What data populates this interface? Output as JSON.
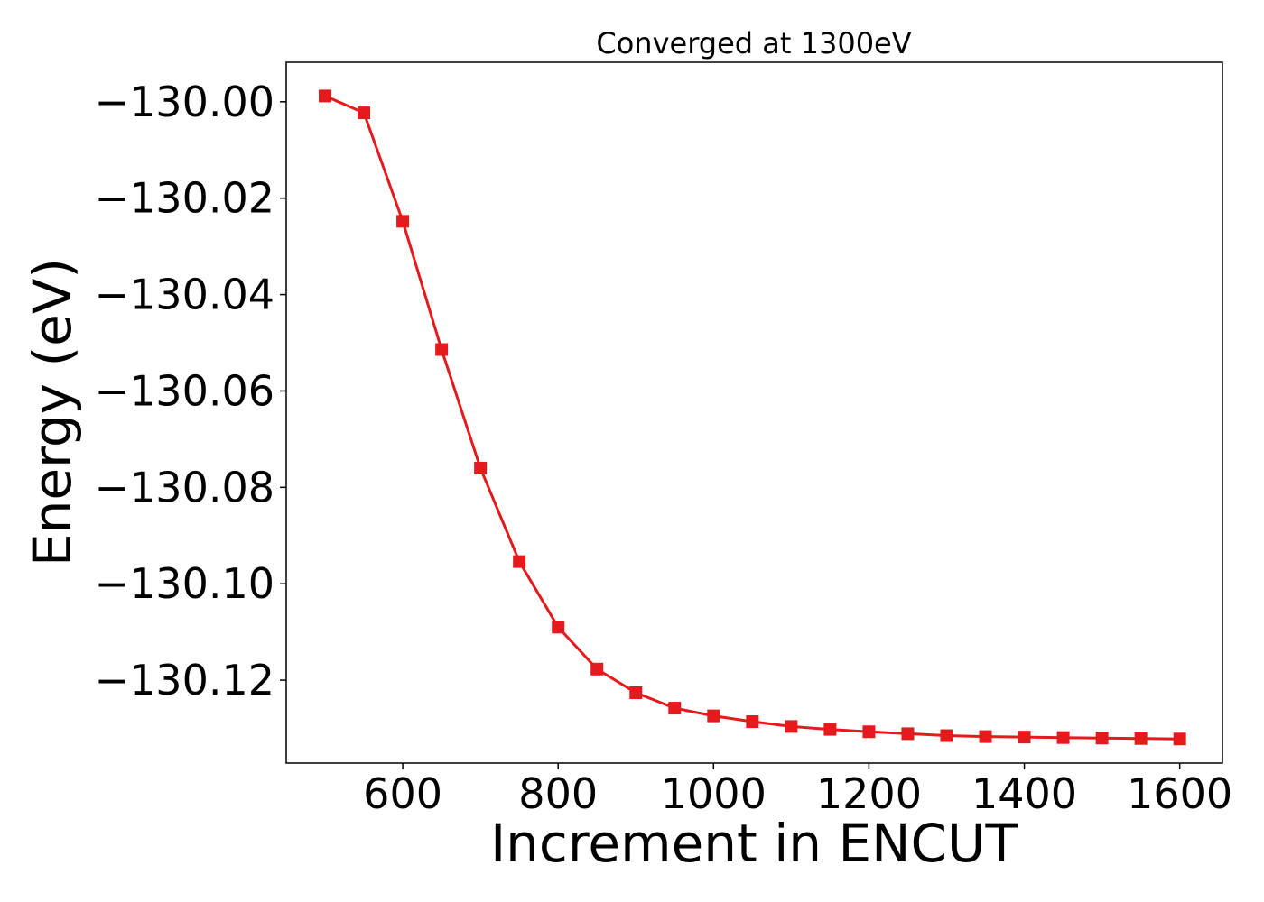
{
  "chart_data": {
    "type": "line",
    "title": "Converged at 1300eV",
    "xlabel": "Increment in ENCUT",
    "ylabel": "Energy (eV)",
    "xlim": [
      450,
      1655
    ],
    "ylim": [
      -130.1372,
      -129.9918
    ],
    "x_ticks": [
      600,
      800,
      1000,
      1200,
      1400,
      1600
    ],
    "x_tick_labels": [
      "600",
      "800",
      "1000",
      "1200",
      "1400",
      "1600"
    ],
    "y_ticks": [
      -130.0,
      -130.02,
      -130.04,
      -130.06,
      -130.08,
      -130.1,
      -130.12
    ],
    "y_tick_labels": [
      "−130.00",
      "−130.02",
      "−130.04",
      "−130.06",
      "−130.08",
      "−130.10",
      "−130.12"
    ],
    "grid": false,
    "series": [
      {
        "color": "#e41a1c",
        "marker": "square",
        "x": [
          500,
          550,
          600,
          650,
          700,
          750,
          800,
          850,
          900,
          950,
          1000,
          1050,
          1100,
          1150,
          1200,
          1250,
          1300,
          1350,
          1400,
          1450,
          1500,
          1550,
          1600
        ],
        "y": [
          -129.9988,
          -130.0023,
          -130.0248,
          -130.0514,
          -130.076,
          -130.0954,
          -130.109,
          -130.1177,
          -130.1226,
          -130.1258,
          -130.1274,
          -130.1286,
          -130.1296,
          -130.1302,
          -130.1307,
          -130.1311,
          -130.1315,
          -130.1317,
          -130.1318,
          -130.1319,
          -130.132,
          -130.1321,
          -130.1322
        ]
      }
    ]
  }
}
